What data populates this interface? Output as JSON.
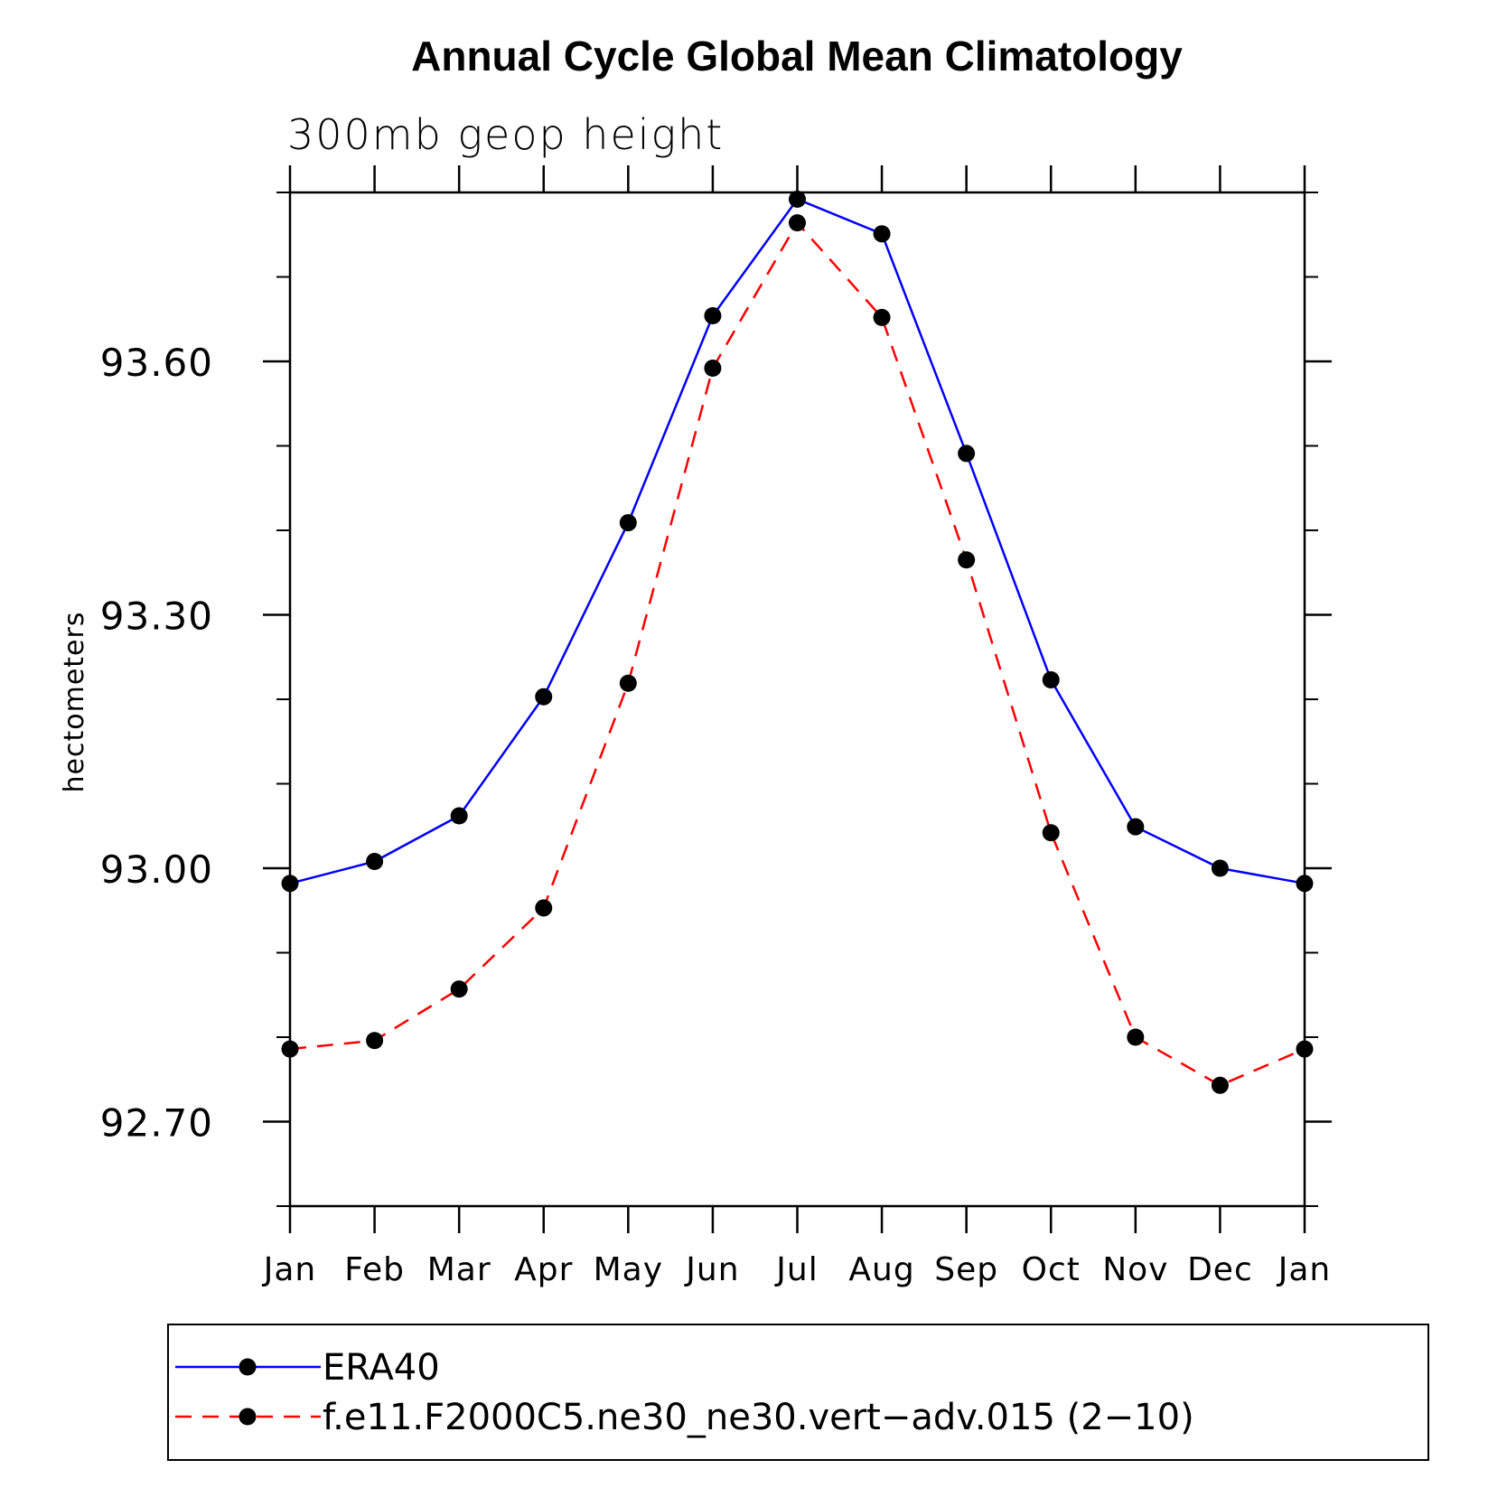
{
  "chart_data": {
    "type": "line",
    "title": "Annual Cycle Global Mean Climatology",
    "subtitle": "300mb geop height",
    "xlabel": "",
    "ylabel": "hectometers",
    "categories": [
      "Jan",
      "Feb",
      "Mar",
      "Apr",
      "May",
      "Jun",
      "Jul",
      "Aug",
      "Sep",
      "Oct",
      "Nov",
      "Dec",
      "Jan"
    ],
    "ylim": [
      92.6,
      93.8
    ],
    "y_major_ticks": [
      92.7,
      93.0,
      93.3,
      93.6
    ],
    "y_major_tick_labels": [
      "92.70",
      "93.00",
      "93.30",
      "93.60"
    ],
    "y_minor_ticks": [
      92.6,
      92.8,
      92.9,
      93.1,
      93.2,
      93.4,
      93.5,
      93.7,
      93.8
    ],
    "grid": false,
    "legend_position": "bottom",
    "series": [
      {
        "name": "ERA40",
        "color": "#0000ff",
        "line_style": "solid",
        "marker": "filled-circle",
        "values": [
          92.982,
          93.008,
          93.062,
          93.203,
          93.409,
          93.654,
          93.792,
          93.751,
          93.491,
          93.223,
          93.049,
          93.0,
          92.982
        ]
      },
      {
        "name": "f.e11.F2000C5.ne30_ne30.vert−adv.015 (2−10)",
        "color": "#ff0000",
        "line_style": "dashed",
        "marker": "filled-circle",
        "values": [
          92.786,
          92.796,
          92.857,
          92.953,
          93.219,
          93.592,
          93.764,
          93.652,
          93.365,
          93.042,
          92.8,
          92.743,
          92.786
        ]
      }
    ]
  }
}
